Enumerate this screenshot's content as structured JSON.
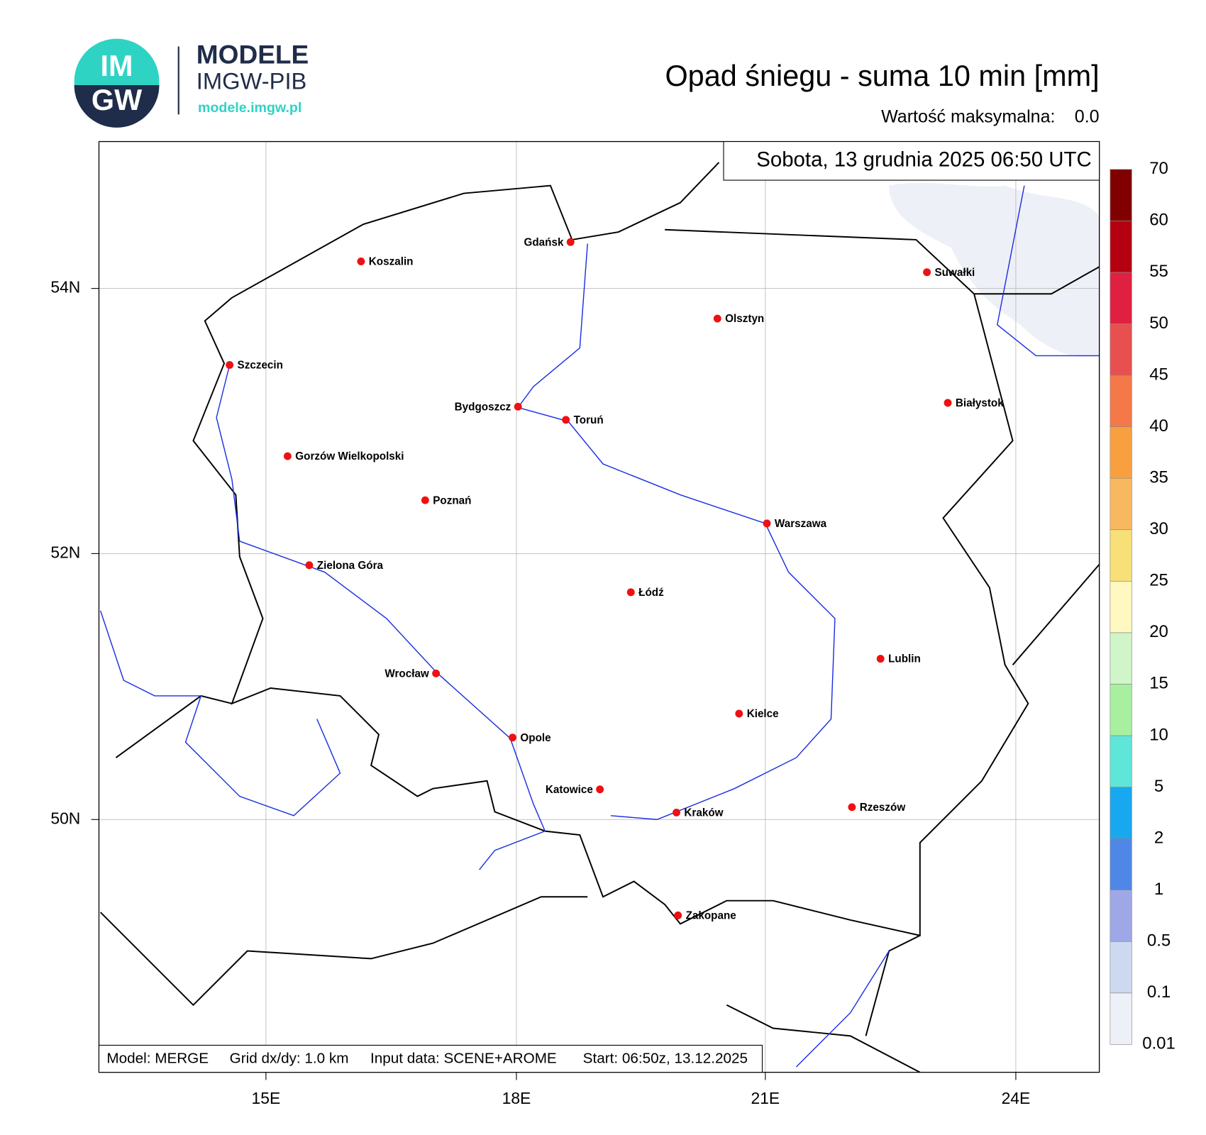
{
  "logo": {
    "mark_top": "IM",
    "mark_bottom": "GW",
    "name": "MODELE",
    "org": "IMGW-PIB",
    "url": "modele.imgw.pl"
  },
  "title": "Opad śniegu - suma 10 min [mm]",
  "max_label": "Wartość maksymalna:",
  "max_value": "0.0",
  "datetime": "Sobota, 13 grudnia 2025 06:50 UTC",
  "lat_labels": [
    "54N",
    "52N",
    "50N"
  ],
  "lon_labels": [
    "15E",
    "18E",
    "21E",
    "24E"
  ],
  "cities": [
    "Koszalin",
    "Gdańsk",
    "Suwałki",
    "Olsztyn",
    "Szczecin",
    "Białystok",
    "Bydgoszcz",
    "Toruń",
    "Gorzów Wielkopolski",
    "Poznań",
    "Warszawa",
    "Zielona Góra",
    "Łódź",
    "Lublin",
    "Wrocław",
    "Kielce",
    "Opole",
    "Katowice",
    "Rzeszów",
    "Kraków",
    "Zakopane"
  ],
  "colorbar": {
    "levels": [
      0.01,
      0.1,
      0.5,
      1,
      2,
      5,
      10,
      15,
      20,
      25,
      30,
      35,
      40,
      45,
      50,
      55,
      60,
      70
    ],
    "colors": [
      "#eef0f8",
      "#cdd9f0",
      "#9fa8e6",
      "#4f87e6",
      "#18a8f0",
      "#5ee6d8",
      "#a8f0a0",
      "#d0f5c8",
      "#fff8c0",
      "#f8e078",
      "#f8b860",
      "#f8a040",
      "#f47848",
      "#e85050",
      "#e02040",
      "#b40010",
      "#800000"
    ]
  },
  "footer": [
    "Model: MERGE",
    "Grid dx/dy: 1.0 km",
    "Input data: SCENE+AROME",
    "Start: 06:50z, 13.12.2025"
  ]
}
